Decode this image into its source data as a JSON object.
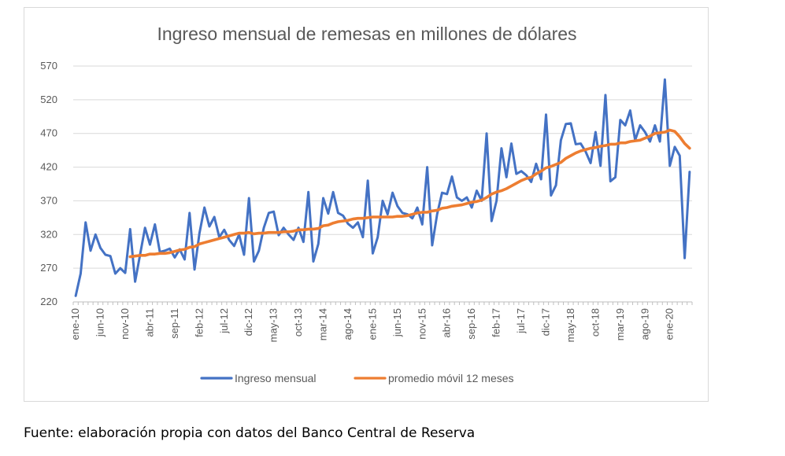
{
  "source": "Fuente: elaboración propia con datos del Banco Central de Reserva",
  "chart_data": {
    "type": "line",
    "title": "Ingreso mensual de remesas en millones de dólares",
    "xlabel": "",
    "ylabel": "",
    "ylim": [
      220,
      570
    ],
    "yticks": [
      220,
      270,
      320,
      370,
      420,
      470,
      520,
      570
    ],
    "grid": true,
    "legend_position": "bottom",
    "x_tick_labels": [
      "ene-10",
      "jun-10",
      "nov-10",
      "abr-11",
      "sep-11",
      "feb-12",
      "jul-12",
      "dic-12",
      "may-13",
      "oct-13",
      "mar-14",
      "ago-14",
      "ene-15",
      "jun-15",
      "nov-15",
      "abr-16",
      "sep-16",
      "feb-17",
      "jul-17",
      "dic-17",
      "may-18",
      "oct-18",
      "mar-19",
      "ago-19",
      "ene-20"
    ],
    "x_tick_start": "ene-10",
    "x_tick_step_months": 5,
    "x_start": "ene-10",
    "series": [
      {
        "name": "Ingreso mensual",
        "color": "#4472c4",
        "start": "ene-10",
        "values": [
          229,
          262,
          338,
          296,
          320,
          300,
          290,
          288,
          262,
          270,
          263,
          328,
          250,
          290,
          330,
          305,
          335,
          294,
          296,
          299,
          286,
          298,
          283,
          352,
          268,
          322,
          360,
          332,
          346,
          316,
          327,
          312,
          303,
          320,
          290,
          374,
          280,
          296,
          330,
          352,
          354,
          319,
          330,
          320,
          312,
          330,
          309,
          383,
          280,
          306,
          374,
          351,
          383,
          352,
          348,
          336,
          330,
          338,
          316,
          400,
          292,
          316,
          370,
          350,
          382,
          362,
          352,
          350,
          344,
          360,
          335,
          420,
          304,
          350,
          382,
          380,
          406,
          375,
          370,
          375,
          360,
          385,
          370,
          470,
          340,
          370,
          448,
          405,
          455,
          410,
          414,
          408,
          398,
          425,
          402,
          498,
          378,
          393,
          460,
          484,
          485,
          454,
          455,
          443,
          426,
          472,
          422,
          527,
          399,
          405,
          490,
          482,
          504,
          460,
          482,
          472,
          458,
          482,
          458,
          550,
          422,
          450,
          437,
          285,
          413
        ]
      },
      {
        "name": "promedio móvil 12 meses",
        "color": "#ed7d31",
        "start": "ene-10",
        "values": [
          null,
          null,
          null,
          null,
          null,
          null,
          null,
          null,
          null,
          null,
          null,
          287,
          288,
          289,
          289,
          291,
          291,
          292,
          292,
          293,
          295,
          297,
          298,
          301,
          302,
          306,
          308,
          310,
          312,
          314,
          316,
          318,
          320,
          322,
          322,
          323,
          321,
          322,
          322,
          323,
          323,
          323,
          324,
          324,
          325,
          327,
          327,
          328,
          328,
          329,
          333,
          334,
          337,
          339,
          340,
          341,
          343,
          344,
          344,
          345,
          346,
          346,
          346,
          346,
          346,
          347,
          347,
          348,
          350,
          352,
          353,
          353,
          355,
          356,
          359,
          360,
          362,
          363,
          364,
          366,
          368,
          369,
          371,
          375,
          380,
          383,
          385,
          388,
          392,
          396,
          400,
          403,
          405,
          410,
          414,
          419,
          421,
          424,
          427,
          433,
          437,
          441,
          444,
          446,
          448,
          449,
          451,
          452,
          454,
          454,
          456,
          456,
          458,
          459,
          460,
          463,
          466,
          470,
          471,
          472,
          475,
          473,
          465,
          455,
          448
        ]
      }
    ]
  }
}
